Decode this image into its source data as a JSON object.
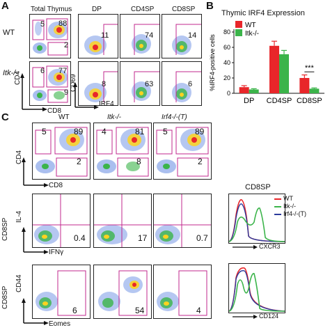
{
  "panel_A": {
    "letter": "A",
    "header_total": "Total Thymus",
    "header_dp": "DP",
    "header_cd4sp": "CD4SP",
    "header_cd8sp": "CD8SP",
    "row_wt": "WT",
    "row_itk": "Itk-/-",
    "axis_cd4": "CD4",
    "axis_cd8": "CD8",
    "axis_cd69": "CD69",
    "axis_irf4": "IRF4",
    "wt_total": {
      "tl": "5",
      "tr": "88",
      "br": "2"
    },
    "itk_total": {
      "tl": "6",
      "tr": "77",
      "br": "9"
    },
    "wt_dp": "11",
    "wt_cd4": "74",
    "wt_cd8": "14",
    "itk_dp": "8",
    "itk_cd4": "63",
    "itk_cd8": "6"
  },
  "panel_B": {
    "letter": "B",
    "significance": "***"
  },
  "chart_data": {
    "type": "bar",
    "title": "Thymic IRF4 Expression",
    "ylabel": "%IRF4-positive cells",
    "ylim": [
      0,
      80
    ],
    "yticks": [
      "0",
      "20",
      "40",
      "60",
      "80"
    ],
    "categories": [
      "DP",
      "CD4SP",
      "CD8SP"
    ],
    "series": [
      {
        "name": "WT",
        "color": "#e8262a",
        "values": [
          8,
          62,
          20
        ],
        "errors": [
          2,
          6,
          4
        ]
      },
      {
        "name": "Itk-/-",
        "color": "#3bb44a",
        "values": [
          5,
          51,
          6
        ],
        "errors": [
          1,
          5,
          1
        ]
      }
    ],
    "legend": "top-left"
  },
  "panel_C": {
    "letter": "C",
    "col_wt": "WT",
    "col_itk": "Itk-/-",
    "col_irf4": "Irf4-/-(T)",
    "axis_cd4": "CD4",
    "axis_cd8": "CD8",
    "axis_il4": "IL-4",
    "axis_ifng": "IFNγ",
    "axis_cd44": "CD44",
    "axis_eomes": "Eomes",
    "row_cd8sp_a": "CD8SP",
    "row_cd8sp_b": "CD8SP",
    "cd4cd8": [
      {
        "tl": "5",
        "tr": "89",
        "br": "2"
      },
      {
        "tl": "4",
        "tr": "81",
        "br": "8"
      },
      {
        "tl": "5",
        "tr": "89",
        "br": "2"
      }
    ],
    "il4ifng": [
      "0.4",
      "17",
      "0.7"
    ],
    "cd44eomes": [
      "6",
      "54",
      "4"
    ],
    "hist_title": "CD8SP",
    "hist_legend": [
      "WT",
      "Itk-/-",
      "Irf4-/-(T)"
    ],
    "hist_colors": [
      "#e8262a",
      "#3bb44a",
      "#2b3a9c"
    ],
    "hist_axis_1": "CXCR3",
    "hist_axis_2": "CD124"
  }
}
